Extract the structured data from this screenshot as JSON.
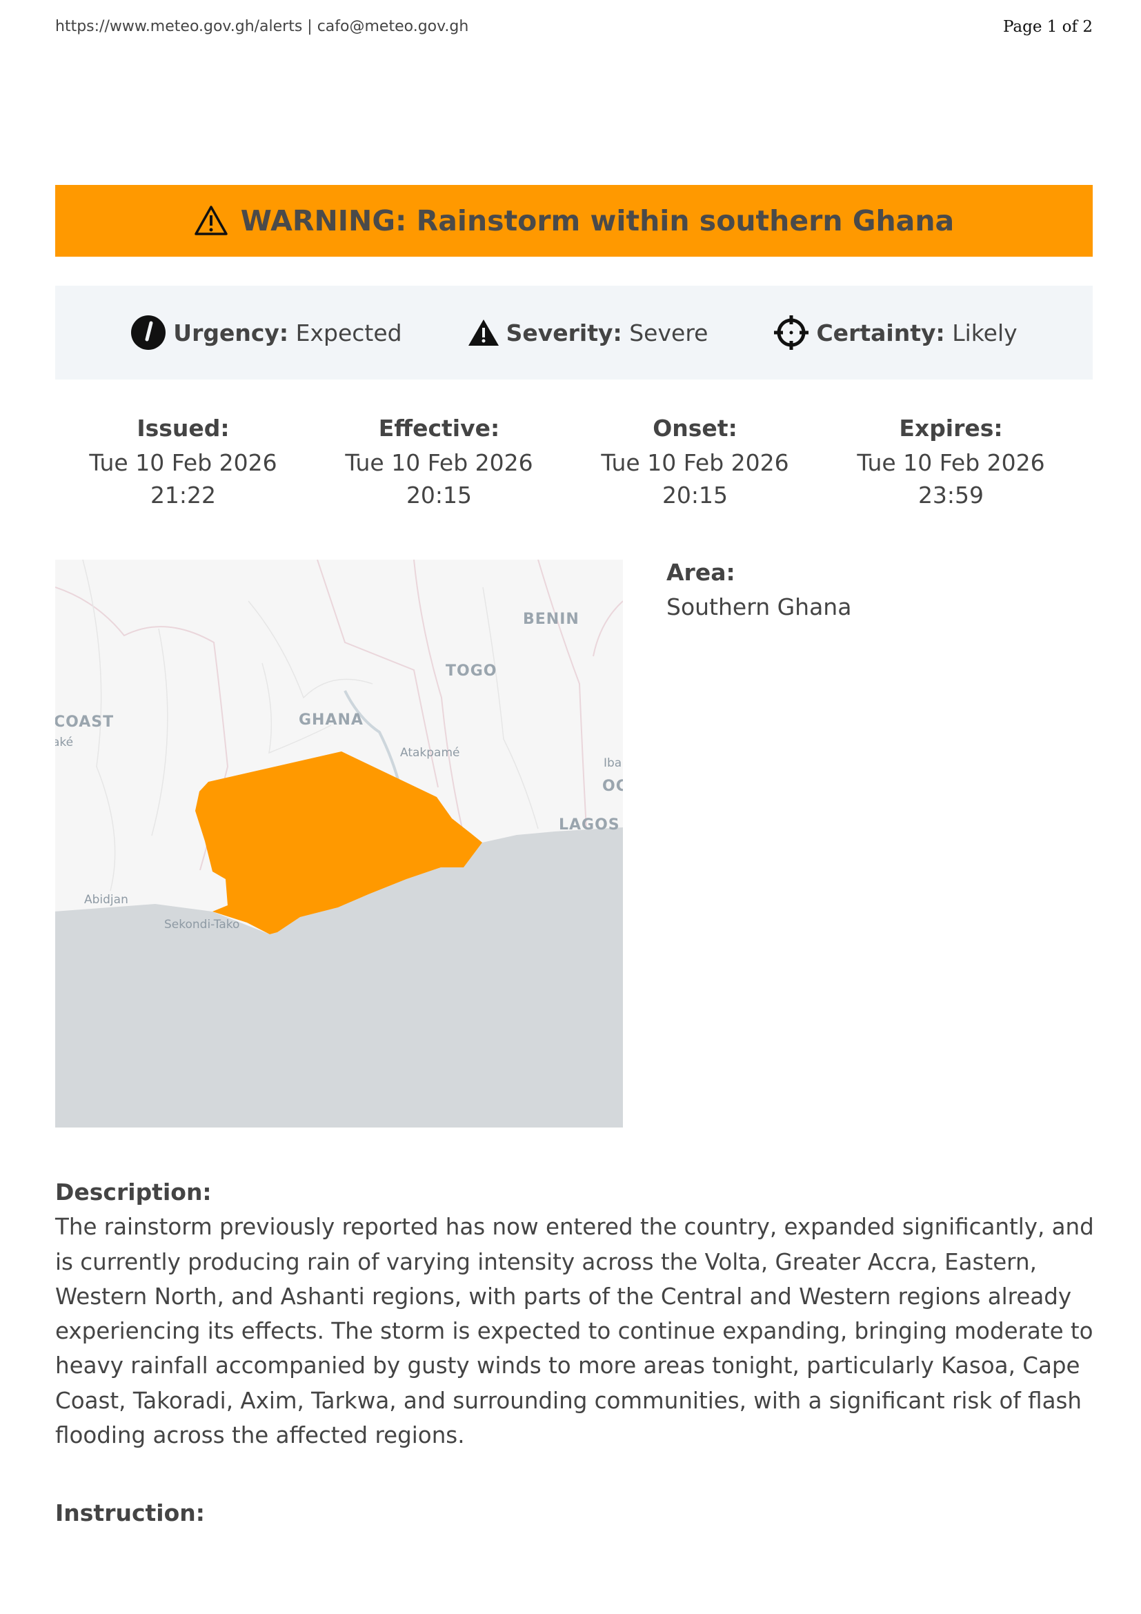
{
  "header": {
    "site": "https://www.meteo.gov.gh/alerts  | cafo@meteo.gov.gh",
    "page": "Page 1 of 2"
  },
  "banner": {
    "title": "WARNING: Rainstorm within southern Ghana",
    "icon": "warning-triangle-icon",
    "color": "#ff9900"
  },
  "info": {
    "urgency": {
      "label": "Urgency:",
      "value": "Expected",
      "icon": "clock-icon"
    },
    "severity": {
      "label": "Severity:",
      "value": "Severe",
      "icon": "warning-filled-icon"
    },
    "certainty": {
      "label": "Certainty:",
      "value": "Likely",
      "icon": "crosshair-icon"
    }
  },
  "dates": [
    {
      "label": "Issued:",
      "date": "Tue 10 Feb 2026",
      "time": "21:22"
    },
    {
      "label": "Effective:",
      "date": "Tue 10 Feb 2026",
      "time": "20:15"
    },
    {
      "label": "Onset:",
      "date": "Tue 10 Feb 2026",
      "time": "20:15"
    },
    {
      "label": "Expires:",
      "date": "Tue 10 Feb 2026",
      "time": "23:59"
    }
  ],
  "map": {
    "labels": {
      "benin": "BENIN",
      "togo": "TOGO",
      "ghana": "GHANA",
      "coast": "COAST",
      "atakpame": "Atakpamé",
      "abidjan": "Abidjan",
      "sekondi": "Sekondi-Tako",
      "lagos": "LAGOS",
      "iba": "Iba",
      "oc": "OC",
      "ake": "aké"
    },
    "area_color": "#ff9900",
    "sea_color": "#d4d8db"
  },
  "area": {
    "label": "Area:",
    "value": "Southern Ghana"
  },
  "description": {
    "label": "Description:",
    "text": "The rainstorm previously reported has now entered the country, expanded significantly, and is currently producing rain of varying intensity across the Volta, Greater Accra, Eastern, Western North, and Ashanti regions, with parts of the Central and Western regions already experiencing its effects. The storm is expected to continue expanding, bringing moderate to heavy rainfall accompanied by gusty winds to more areas tonight, particularly Kasoa, Cape Coast, Takoradi, Axim, Tarkwa, and surrounding communities, with a significant risk of flash flooding across the affected regions."
  },
  "instruction": {
    "label": "Instruction:"
  }
}
